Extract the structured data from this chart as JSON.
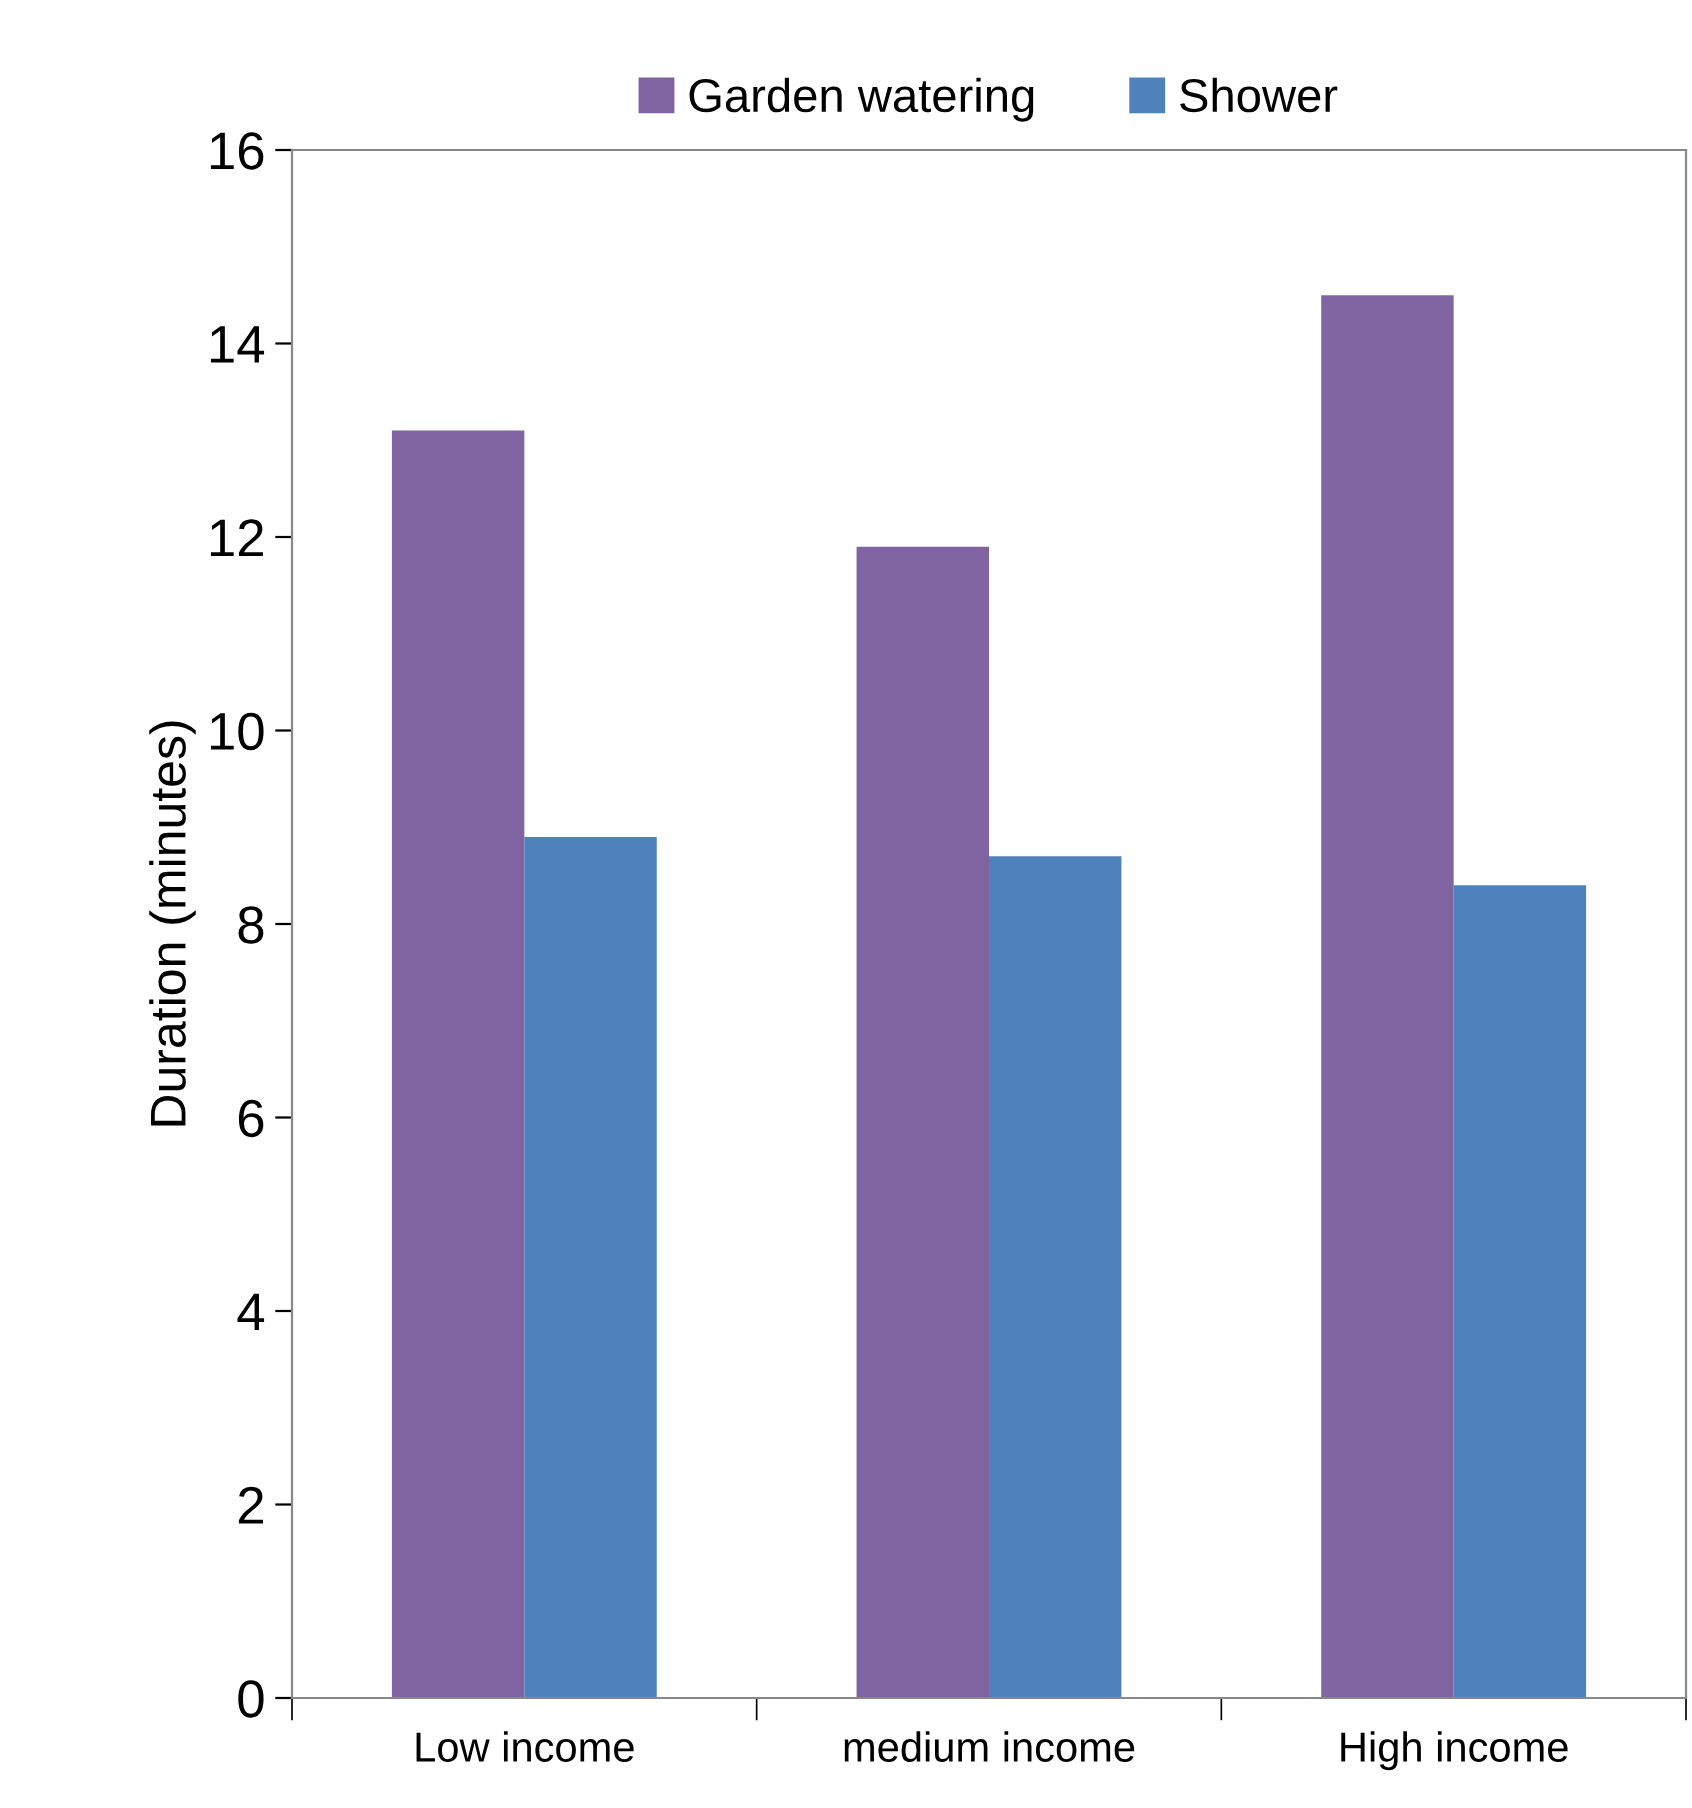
{
  "chart_data": {
    "type": "bar",
    "ylabel": "Duration (minutes)",
    "categories": [
      "Low income",
      "medium income",
      "High income"
    ],
    "series": [
      {
        "name": "Garden watering",
        "color": "#8064a2",
        "values": [
          13.1,
          11.9,
          14.5
        ]
      },
      {
        "name": "Shower",
        "color": "#4f81bd",
        "values": [
          8.9,
          8.7,
          8.4
        ]
      }
    ],
    "ylim": [
      0,
      16
    ],
    "yticks": [
      0,
      2,
      4,
      6,
      8,
      10,
      12,
      14,
      16
    ],
    "grid": false,
    "legend": "top"
  }
}
